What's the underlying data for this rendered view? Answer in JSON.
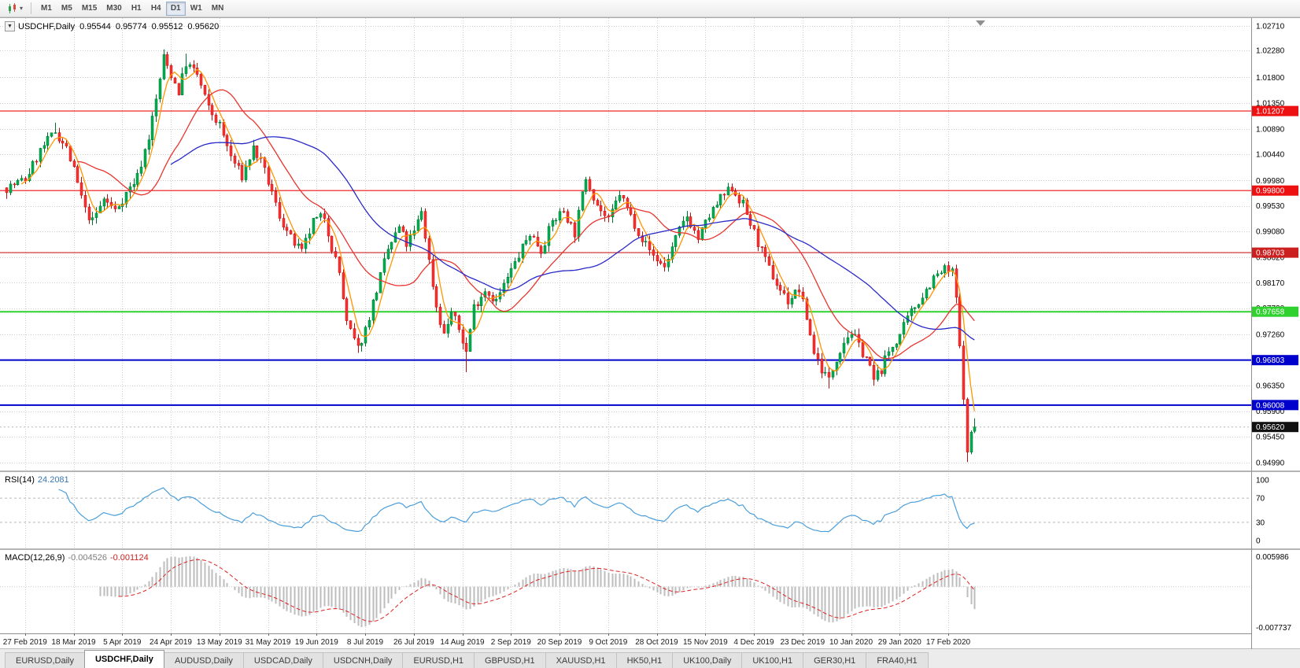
{
  "toolbar": {
    "timeframes": [
      "M1",
      "M5",
      "M15",
      "M30",
      "H1",
      "H4",
      "D1",
      "W1",
      "MN"
    ],
    "active_timeframe": "D1"
  },
  "chart": {
    "title": "USDCHF,Daily",
    "ohlc": {
      "open": "0.95544",
      "high": "0.95774",
      "low": "0.95512",
      "close": "0.95620"
    },
    "axis_top_price": 1.0271,
    "axis_bottom_price": 0.9499,
    "price_axis_labels": [
      "1.02710",
      "1.02280",
      "1.01800",
      "1.01350",
      "1.00890",
      "1.00440",
      "0.99980",
      "0.99530",
      "0.99080",
      "0.98620",
      "0.98170",
      "0.97720",
      "0.97260",
      "0.96810",
      "0.96350",
      "0.95900",
      "0.95450",
      "0.94990"
    ],
    "hlines": [
      {
        "price": 1.01207,
        "label": "1.01207",
        "color": "#ee1111",
        "width": 1.2
      },
      {
        "price": 0.998,
        "label": "0.99800",
        "color": "#ee1111",
        "width": 1.2
      },
      {
        "price": 0.98703,
        "label": "0.98703",
        "color": "#cc2020",
        "width": 1.2
      },
      {
        "price": 0.97658,
        "label": "0.97658",
        "color": "#2fd12f",
        "width": 2
      },
      {
        "price": 0.96803,
        "label": "0.96803",
        "color": "#0000cc",
        "width": 2
      },
      {
        "price": 0.96008,
        "label": "0.96008",
        "color": "#0000cc",
        "width": 2
      }
    ],
    "current_price": {
      "value": 0.9562,
      "label": "0.95620",
      "bg": "#111111"
    },
    "dates": [
      "27 Feb 2019",
      "18 Mar 2019",
      "5 Apr 2019",
      "24 Apr 2019",
      "13 May 2019",
      "31 May 2019",
      "19 Jun 2019",
      "8 Jul 2019",
      "26 Jul 2019",
      "14 Aug 2019",
      "2 Sep 2019",
      "20 Sep 2019",
      "9 Oct 2019",
      "28 Oct 2019",
      "15 Nov 2019",
      "4 Dec 2019",
      "23 Dec 2019",
      "10 Jan 2020",
      "29 Jan 2020",
      "17 Feb 2020"
    ]
  },
  "rsi": {
    "label": "RSI(14)",
    "value": "24.2081",
    "levels": [
      "100",
      "70",
      "30",
      "0"
    ],
    "color": "#4a9edb"
  },
  "macd": {
    "label": "MACD(12,26,9)",
    "main_value": "-0.004526",
    "signal_value": "-0.001124",
    "axis_top": "0.005986",
    "axis_bottom": "-0.007737"
  },
  "tabs": {
    "items": [
      "EURUSD,Daily",
      "USDCHF,Daily",
      "AUDUSD,Daily",
      "USDCAD,Daily",
      "USDCNH,Daily",
      "EURUSD,H1",
      "GBPUSD,H1",
      "XAUUSD,H1",
      "HK50,H1",
      "UK100,Daily",
      "UK100,H1",
      "GER30,H1",
      "FRA40,H1"
    ],
    "active": "USDCHF,Daily"
  },
  "chart_data": {
    "type": "candlestick",
    "symbol": "USDCHF",
    "period": "Daily",
    "last_candle_ohlc": {
      "o": 0.95544,
      "h": 0.95774,
      "l": 0.95512,
      "c": 0.9562
    },
    "price_axis": {
      "top": 1.0271,
      "bottom": 0.9499
    },
    "key_levels": [
      1.01207,
      0.998,
      0.98703,
      0.97658,
      0.96803,
      0.96008
    ],
    "current_price": 0.9562,
    "candle_count": 260,
    "first_label_index": 5,
    "label_every": 13,
    "close_waypoints": [
      [
        0,
        0.9985
      ],
      [
        5,
        1.0
      ],
      [
        9,
        1.005
      ],
      [
        13,
        1.0085
      ],
      [
        16,
        1.0055
      ],
      [
        18,
        1.0015
      ],
      [
        21,
        0.9945
      ],
      [
        23,
        0.9925
      ],
      [
        26,
        0.9965
      ],
      [
        29,
        0.9945
      ],
      [
        32,
        0.9975
      ],
      [
        35,
        1.0005
      ],
      [
        38,
        1.0075
      ],
      [
        40,
        1.014
      ],
      [
        42,
        1.0215
      ],
      [
        44,
        1.0185
      ],
      [
        46,
        1.0155
      ],
      [
        48,
        1.0205
      ],
      [
        51,
        1.0185
      ],
      [
        54,
        1.0125
      ],
      [
        57,
        1.0095
      ],
      [
        60,
        1.004
      ],
      [
        63,
        1.0005
      ],
      [
        66,
        1.0055
      ],
      [
        68,
        1.003
      ],
      [
        70,
        0.9995
      ],
      [
        73,
        0.9935
      ],
      [
        76,
        0.9895
      ],
      [
        79,
        0.987
      ],
      [
        82,
        0.9925
      ],
      [
        85,
        0.9935
      ],
      [
        87,
        0.988
      ],
      [
        89,
        0.9835
      ],
      [
        91,
        0.9745
      ],
      [
        94,
        0.97
      ],
      [
        96,
        0.9735
      ],
      [
        99,
        0.9805
      ],
      [
        102,
        0.9875
      ],
      [
        105,
        0.9915
      ],
      [
        107,
        0.9885
      ],
      [
        109,
        0.9905
      ],
      [
        111,
        0.9945
      ],
      [
        113,
        0.9855
      ],
      [
        115,
        0.9775
      ],
      [
        117,
        0.9725
      ],
      [
        119,
        0.9765
      ],
      [
        121,
        0.9735
      ],
      [
        123,
        0.9695
      ],
      [
        125,
        0.9775
      ],
      [
        128,
        0.9805
      ],
      [
        131,
        0.9785
      ],
      [
        134,
        0.9825
      ],
      [
        137,
        0.9865
      ],
      [
        140,
        0.9905
      ],
      [
        143,
        0.9875
      ],
      [
        146,
        0.9925
      ],
      [
        149,
        0.9945
      ],
      [
        152,
        0.9905
      ],
      [
        155,
        1.0005
      ],
      [
        158,
        0.9955
      ],
      [
        161,
        0.9925
      ],
      [
        164,
        0.9975
      ],
      [
        167,
        0.9935
      ],
      [
        170,
        0.9895
      ],
      [
        173,
        0.9865
      ],
      [
        176,
        0.9845
      ],
      [
        179,
        0.9895
      ],
      [
        182,
        0.9935
      ],
      [
        185,
        0.9895
      ],
      [
        188,
        0.9935
      ],
      [
        191,
        0.9965
      ],
      [
        194,
        0.9985
      ],
      [
        197,
        0.9955
      ],
      [
        200,
        0.9905
      ],
      [
        203,
        0.9855
      ],
      [
        206,
        0.9815
      ],
      [
        209,
        0.9785
      ],
      [
        212,
        0.9805
      ],
      [
        214,
        0.9755
      ],
      [
        216,
        0.9695
      ],
      [
        218,
        0.9665
      ],
      [
        220,
        0.9645
      ],
      [
        222,
        0.9685
      ],
      [
        224,
        0.9715
      ],
      [
        226,
        0.973
      ],
      [
        228,
        0.9705
      ],
      [
        230,
        0.9685
      ],
      [
        232,
        0.9645
      ],
      [
        234,
        0.9665
      ],
      [
        236,
        0.9695
      ],
      [
        239,
        0.9725
      ],
      [
        242,
        0.9765
      ],
      [
        245,
        0.9795
      ],
      [
        248,
        0.9825
      ],
      [
        251,
        0.984
      ],
      [
        253,
        0.9835
      ],
      [
        254,
        0.979
      ],
      [
        255,
        0.97
      ],
      [
        256,
        0.962
      ],
      [
        257,
        0.9512
      ],
      [
        258,
        0.9553
      ],
      [
        259,
        0.9562
      ]
    ],
    "spikes": [
      {
        "i": 13,
        "high": 1.01
      },
      {
        "i": 42,
        "high": 1.0226
      },
      {
        "i": 48,
        "high": 1.0222
      },
      {
        "i": 94,
        "low": 0.9693
      },
      {
        "i": 123,
        "low": 0.9659
      },
      {
        "i": 220,
        "low": 0.963
      },
      {
        "i": 232,
        "low": 0.9635
      },
      {
        "i": 257,
        "low": 0.95
      }
    ],
    "noise": 0.0009,
    "wick": 0.0011,
    "seed": 7,
    "up_color": "#00b050",
    "up_border": "#00702e",
    "down_color": "#ff2f2f",
    "down_border": "#b41010",
    "moving_averages": [
      {
        "period": 5,
        "color": "#ff9500"
      },
      {
        "period": 20,
        "color": "#e8352e"
      },
      {
        "period": 45,
        "color": "#2929c8"
      }
    ],
    "indicators": {
      "rsi": {
        "period": 14,
        "current": 24.2081,
        "color": "#4a9edb",
        "levels": [
          70,
          30
        ]
      },
      "macd": {
        "fast": 12,
        "slow": 26,
        "signal": 9,
        "current_main": -0.004526,
        "current_signal": -0.001124,
        "histogram_color": "#bdbdbd",
        "signal_color": "#dd2222"
      }
    }
  }
}
